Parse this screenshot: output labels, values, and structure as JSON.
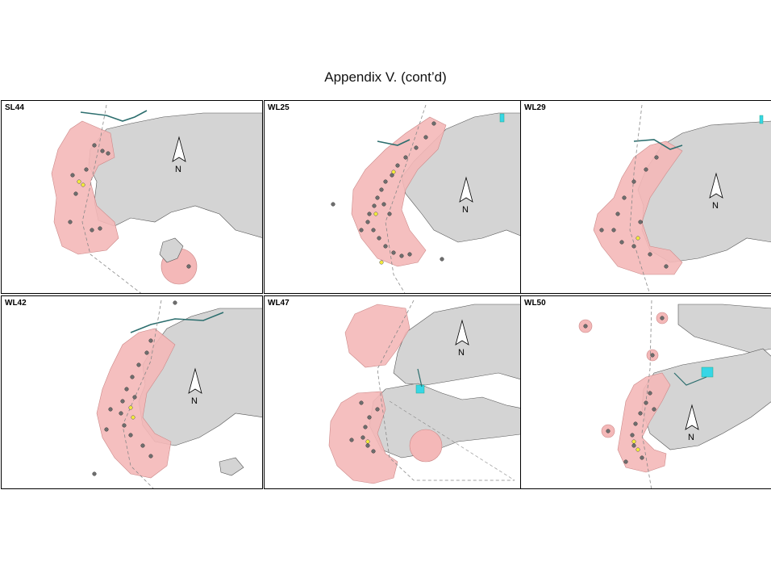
{
  "page": {
    "title": "Appendix V.  (cont’d)"
  },
  "panels": [
    {
      "id": "SL44",
      "label": "SL44",
      "north": "N"
    },
    {
      "id": "WL25",
      "label": "WL25",
      "north": "N"
    },
    {
      "id": "WL29",
      "label": "WL29",
      "north": "N"
    },
    {
      "id": "WL42",
      "label": "WL42",
      "north": "N"
    },
    {
      "id": "WL47",
      "label": "WL47",
      "north": "N"
    },
    {
      "id": "WL50",
      "label": "WL50",
      "north": "N"
    }
  ],
  "colors": {
    "land": "#d4d4d4",
    "range": "#f4b8b8",
    "sighting": "#6e6e6e",
    "highlight": "#f2ea3a",
    "river": "#2c6e6e",
    "marine_park": "#37d6e6",
    "boundary": "#888888"
  }
}
